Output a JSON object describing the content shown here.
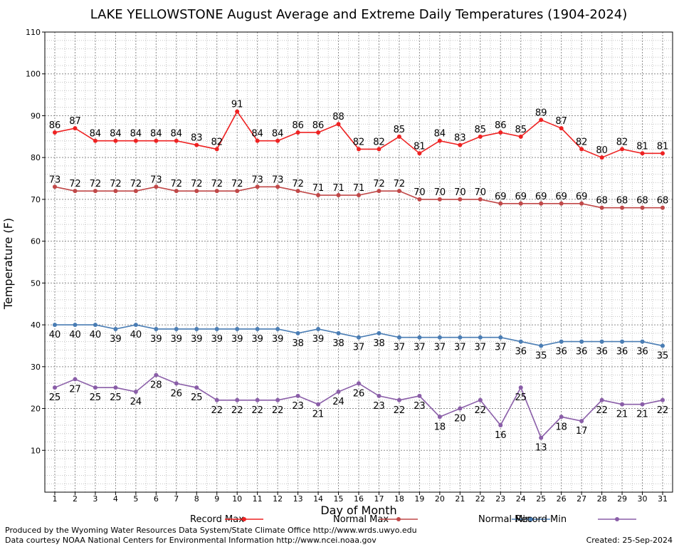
{
  "chart_data": {
    "type": "line",
    "title": "LAKE YELLOWSTONE August Average and Extreme Daily Temperatures (1904-2024)",
    "xlabel": "Day of Month",
    "ylabel": "Temperature (F)",
    "x": [
      1,
      2,
      3,
      4,
      5,
      6,
      7,
      8,
      9,
      10,
      11,
      12,
      13,
      14,
      15,
      16,
      17,
      18,
      19,
      20,
      21,
      22,
      23,
      24,
      25,
      26,
      27,
      28,
      29,
      30,
      31
    ],
    "ylim": [
      0,
      110
    ],
    "yticks": [
      10,
      20,
      30,
      40,
      50,
      60,
      70,
      80,
      90,
      100,
      110
    ],
    "grid": true,
    "legend_position": "bottom",
    "series": [
      {
        "name": "Record Max",
        "color": "#ee2222",
        "values": [
          86,
          87,
          84,
          84,
          84,
          84,
          84,
          83,
          82,
          91,
          84,
          84,
          86,
          86,
          88,
          82,
          82,
          85,
          81,
          84,
          83,
          85,
          86,
          85,
          89,
          87,
          82,
          80,
          82,
          81,
          81
        ]
      },
      {
        "name": "Normal Max",
        "color": "#c04848",
        "values": [
          73,
          72,
          72,
          72,
          72,
          73,
          72,
          72,
          72,
          72,
          73,
          73,
          72,
          71,
          71,
          71,
          72,
          72,
          70,
          70,
          70,
          70,
          69,
          69,
          69,
          69,
          69,
          68,
          68,
          68,
          68
        ]
      },
      {
        "name": "Normal Min",
        "color": "#4a7db4",
        "values": [
          40,
          40,
          40,
          39,
          40,
          39,
          39,
          39,
          39,
          39,
          39,
          39,
          38,
          39,
          38,
          37,
          38,
          37,
          37,
          37,
          37,
          37,
          37,
          36,
          35,
          36,
          36,
          36,
          36,
          36,
          35
        ]
      },
      {
        "name": "Record Min",
        "color": "#8a5ea8",
        "values": [
          25,
          27,
          25,
          25,
          24,
          28,
          26,
          25,
          22,
          22,
          22,
          22,
          23,
          21,
          24,
          26,
          23,
          22,
          23,
          18,
          20,
          22,
          16,
          25,
          13,
          18,
          17,
          22,
          21,
          21,
          22
        ]
      }
    ]
  },
  "footer": {
    "line1": "Produced by the Wyoming Water Resources Data System/State Climate Office http://www.wrds.uwyo.edu",
    "line2": "Data courtesy NOAA National Centers for Environmental Information http://www.ncei.noaa.gov",
    "created": "Created:  25-Sep-2024"
  }
}
